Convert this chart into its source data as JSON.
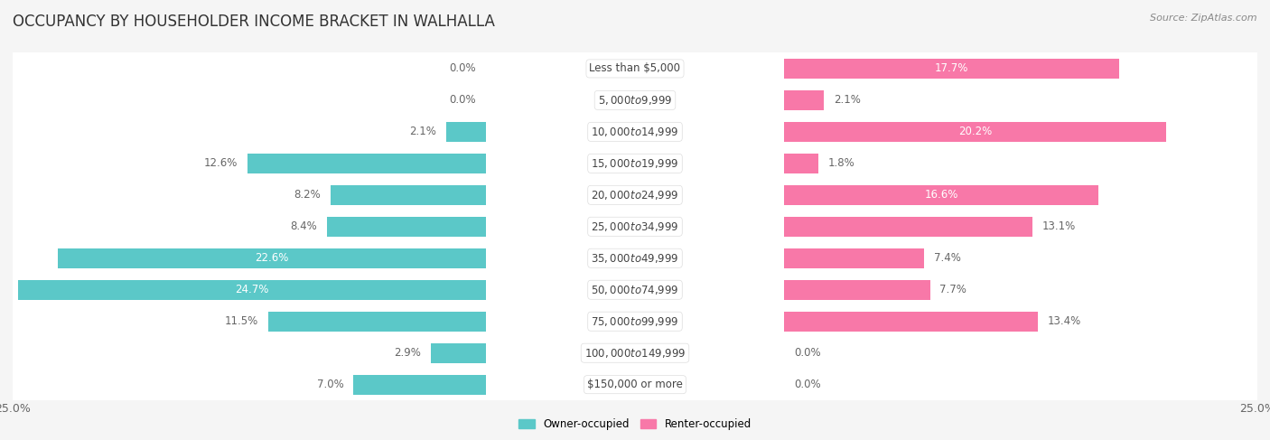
{
  "title": "OCCUPANCY BY HOUSEHOLDER INCOME BRACKET IN WALHALLA",
  "source": "Source: ZipAtlas.com",
  "categories": [
    "Less than $5,000",
    "$5,000 to $9,999",
    "$10,000 to $14,999",
    "$15,000 to $19,999",
    "$20,000 to $24,999",
    "$25,000 to $34,999",
    "$35,000 to $49,999",
    "$50,000 to $74,999",
    "$75,000 to $99,999",
    "$100,000 to $149,999",
    "$150,000 or more"
  ],
  "owner_values": [
    0.0,
    0.0,
    2.1,
    12.6,
    8.2,
    8.4,
    22.6,
    24.7,
    11.5,
    2.9,
    7.0
  ],
  "renter_values": [
    17.7,
    2.1,
    20.2,
    1.8,
    16.6,
    13.1,
    7.4,
    7.7,
    13.4,
    0.0,
    0.0
  ],
  "owner_color": "#5BC8C8",
  "renter_color": "#F878A8",
  "background_color": "#f5f5f5",
  "row_bg_color": "#ffffff",
  "axis_max": 25.0,
  "title_fontsize": 12,
  "label_fontsize": 8.5,
  "tick_fontsize": 9,
  "bar_height": 0.62,
  "legend_owner": "Owner-occupied",
  "legend_renter": "Renter-occupied"
}
